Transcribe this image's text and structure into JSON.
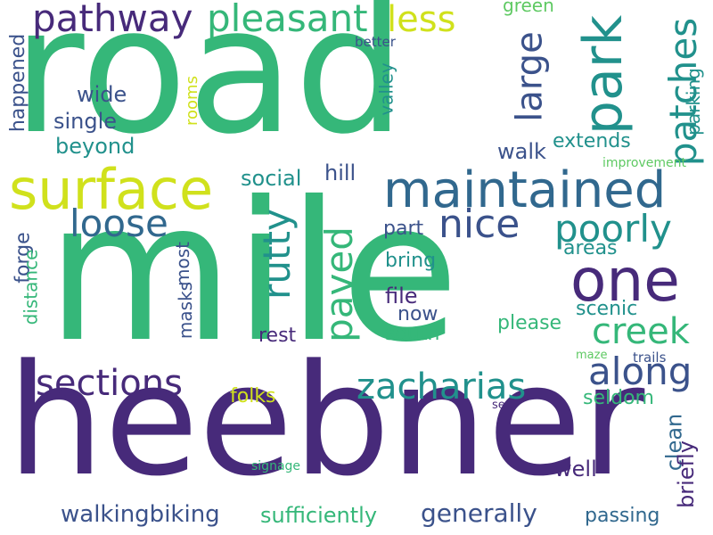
{
  "palette": {
    "purple": "#472a7a",
    "indigo": "#3b528b",
    "blue": "#31688e",
    "teal": "#21918c",
    "green": "#35b779",
    "lightgreen": "#5ec962",
    "yellow": "#d0e11c"
  },
  "words": {
    "road": "road",
    "mile": "mile",
    "heebner": "heebner",
    "surface": "surface",
    "maintained": "maintained",
    "park": "park",
    "pathway": "pathway",
    "pleasant": "pleasant",
    "less": "less",
    "green": "green",
    "large": "large",
    "patches": "patches",
    "parking": "parking",
    "better": "better",
    "wide": "wide",
    "rooms": "rooms",
    "valley": "valley",
    "single": "single",
    "happened": "happened",
    "beyond": "beyond",
    "walk": "walk",
    "extends": "extends",
    "improvement": "improvement",
    "social": "social",
    "hill": "hill",
    "loose": "loose",
    "nice": "nice",
    "poorly": "poorly",
    "rutty": "rutty",
    "paved": "paved",
    "one": "one",
    "part": "part",
    "areas": "areas",
    "forge": "forge",
    "distance": "distance",
    "most": "most",
    "masks": "masks",
    "bring": "bring",
    "file": "file",
    "now": "now",
    "creek": "creek",
    "scenic": "scenic",
    "please": "please",
    "rest": "rest",
    "south": "south",
    "along": "along",
    "sections": "sections",
    "zacharias": "zacharias",
    "maze": "maze",
    "trails": "trails",
    "folks": "folks",
    "seldom": "seldom",
    "see": "see",
    "clean": "clean",
    "briefly": "briefly",
    "signage": "signage",
    "well": "well",
    "walkingbiking": "walkingbiking",
    "sufficiently": "sufficiently",
    "generally": "generally",
    "passing": "passing"
  }
}
